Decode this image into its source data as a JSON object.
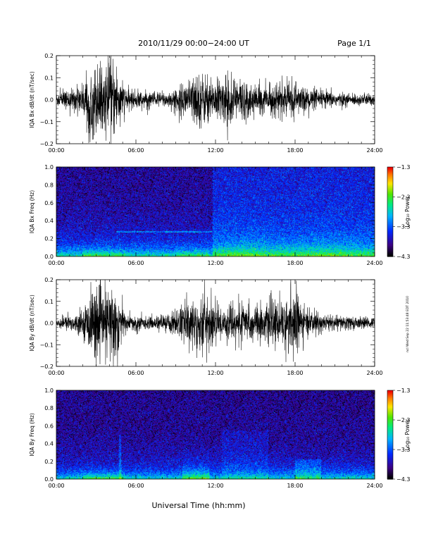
{
  "header": {
    "title": "2010/11/29  00:00−24:00 UT",
    "page": "Page 1/1"
  },
  "stamp": "ncl Wed Sep 22 11:53:48 EDT 2010",
  "x_axis_label": "Universal Time (hh:mm)",
  "chart_data": [
    {
      "type": "line",
      "ylabel": "IQA Bx dB/dt (nT/sec)",
      "xlim": [
        0,
        24
      ],
      "ylim": [
        -0.2,
        0.2
      ],
      "x_ticks": [
        "00:00",
        "06:00",
        "12:00",
        "18:00",
        "24:00"
      ],
      "y_ticks": [
        "−0.2",
        "−0.1",
        "0.0",
        "0.1",
        "0.2"
      ],
      "envelope": {
        "hours": [
          0,
          1,
          2,
          2.5,
          3,
          3.5,
          4,
          4.5,
          5,
          5.5,
          6,
          7,
          8,
          9,
          9.5,
          10,
          10.5,
          11,
          11.5,
          12,
          13,
          14,
          15,
          16,
          17,
          18,
          19,
          20,
          21,
          22,
          23,
          24
        ],
        "amplitude": [
          0.04,
          0.05,
          0.08,
          0.16,
          0.2,
          0.14,
          0.2,
          0.2,
          0.08,
          0.05,
          0.05,
          0.04,
          0.04,
          0.05,
          0.09,
          0.1,
          0.14,
          0.14,
          0.11,
          0.1,
          0.13,
          0.11,
          0.07,
          0.07,
          0.09,
          0.08,
          0.06,
          0.05,
          0.04,
          0.03,
          0.03,
          0.03
        ]
      }
    },
    {
      "type": "heatmap",
      "ylabel": "IQA Bx Freq (Hz)",
      "xlim": [
        0,
        24
      ],
      "ylim": [
        0.0,
        1.0
      ],
      "x_ticks": [
        "00:00",
        "06:00",
        "12:00",
        "18:00",
        "24:00"
      ],
      "y_ticks": [
        "0.0",
        "0.2",
        "0.4",
        "0.6",
        "0.8",
        "1.0"
      ],
      "colorbar": {
        "label": "Log₁₀ Power",
        "range": [
          -4.3,
          -1.3
        ],
        "ticks": [
          "−1.3",
          "−2.3",
          "−3.3",
          "−4.3"
        ]
      },
      "features": {
        "line_freq": 0.27,
        "line_hours": [
          4.5,
          11.8
        ],
        "noise_step_hour": 11.8
      }
    },
    {
      "type": "line",
      "ylabel": "IQA By dB/dt (nT/sec)",
      "xlim": [
        0,
        24
      ],
      "ylim": [
        -0.2,
        0.2
      ],
      "x_ticks": [
        "00:00",
        "06:00",
        "12:00",
        "18:00",
        "24:00"
      ],
      "y_ticks": [
        "−0.2",
        "−0.1",
        "0.0",
        "0.1",
        "0.2"
      ],
      "envelope": {
        "hours": [
          0,
          1,
          2,
          2.5,
          3,
          3.5,
          4,
          4.5,
          5,
          5.5,
          6,
          7,
          8,
          9,
          9.5,
          10,
          10.5,
          11,
          11.5,
          12,
          13,
          14,
          15,
          16,
          17,
          17.5,
          18,
          18.5,
          19,
          20,
          21,
          22,
          23,
          24
        ],
        "amplitude": [
          0.03,
          0.04,
          0.06,
          0.15,
          0.2,
          0.15,
          0.2,
          0.2,
          0.09,
          0.04,
          0.04,
          0.03,
          0.04,
          0.07,
          0.1,
          0.12,
          0.16,
          0.16,
          0.13,
          0.09,
          0.09,
          0.1,
          0.09,
          0.1,
          0.12,
          0.14,
          0.19,
          0.1,
          0.07,
          0.05,
          0.04,
          0.04,
          0.03,
          0.03
        ]
      }
    },
    {
      "type": "heatmap",
      "ylabel": "IQA By Freq (Hz)",
      "xlim": [
        0,
        24
      ],
      "ylim": [
        0.0,
        1.0
      ],
      "x_ticks": [
        "00:00",
        "06:00",
        "12:00",
        "18:00",
        "24:00"
      ],
      "y_ticks": [
        "0.0",
        "0.2",
        "0.4",
        "0.6",
        "0.8",
        "1.0"
      ],
      "colorbar": {
        "label": "Log₁₀ Power",
        "range": [
          -4.3,
          -1.3
        ],
        "ticks": [
          "−1.3",
          "−2.3",
          "−3.3",
          "−4.3"
        ]
      },
      "features": {
        "blob_hours": [
          9.5,
          11.5
        ],
        "blob2_hours": [
          18.0,
          20.0
        ]
      }
    }
  ]
}
